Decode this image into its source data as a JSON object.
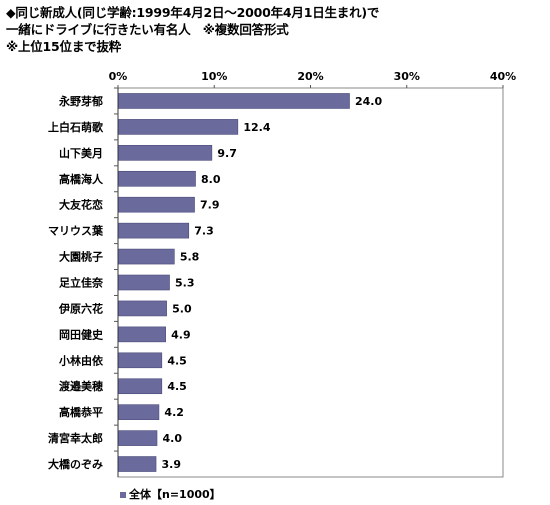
{
  "title_lines": [
    "◆同じ新成人(同じ学齢:1999年4月2日～2000年4月1日生まれ)で",
    "一緒にドライブに行きたい有名人　※複数回答形式",
    "※上位15位まで抜粋"
  ],
  "colors": {
    "bar": "#6a6a9c",
    "bar_edge": "#4a4a7a",
    "grid": "#999999"
  },
  "legend": {
    "label": "全体【n=1000】"
  },
  "chart_data": {
    "type": "bar",
    "orientation": "horizontal",
    "categories": [
      "永野芽郁",
      "上白石萌歌",
      "山下美月",
      "高橋海人",
      "大友花恋",
      "マリウス葉",
      "大園桃子",
      "足立佳奈",
      "伊原六花",
      "岡田健史",
      "小林由依",
      "渡邉美穂",
      "高橋恭平",
      "清宮幸太郎",
      "大橋のぞみ"
    ],
    "series": [
      {
        "name": "全体【n=1000】",
        "values": [
          24.0,
          12.4,
          9.7,
          8.0,
          7.9,
          7.3,
          5.8,
          5.3,
          5.0,
          4.9,
          4.5,
          4.5,
          4.2,
          4.0,
          3.9
        ]
      }
    ],
    "value_labels": [
      "24.0",
      "12.4",
      "9.7",
      "8.0",
      "7.9",
      "7.3",
      "5.8",
      "5.3",
      "5.0",
      "4.9",
      "4.5",
      "4.5",
      "4.2",
      "4.0",
      "3.9"
    ],
    "xlim": [
      0,
      40
    ],
    "xticks": [
      0,
      10,
      20,
      30,
      40
    ],
    "xtick_labels": [
      "0%",
      "10%",
      "20%",
      "30%",
      "40%"
    ],
    "tick_position": "top",
    "grid": false,
    "legend_position": "bottom-left"
  }
}
